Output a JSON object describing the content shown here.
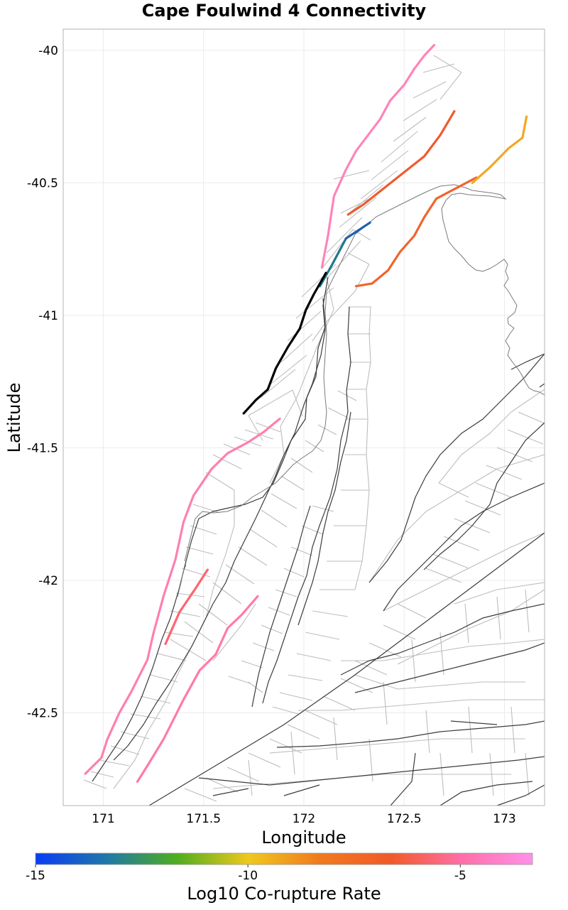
{
  "chart_data": {
    "type": "map",
    "title": "Cape Foulwind 4 Connectivity",
    "xlabel": "Longitude",
    "ylabel": "Latitude",
    "xlim": [
      170.8,
      173.2
    ],
    "ylim": [
      -42.85,
      -39.92
    ],
    "xticks": [
      171,
      171.5,
      172,
      172.5,
      173
    ],
    "xtick_labels": [
      "171",
      "171.5",
      "172",
      "172.5",
      "173"
    ],
    "yticks": [
      -40,
      -40.5,
      -41,
      -41.5,
      -42,
      -42.5
    ],
    "ytick_labels": [
      "-40",
      "-40.5",
      "-41",
      "-41.5",
      "-42",
      "-42.5"
    ],
    "colorbar": {
      "label": "Log10 Co-rupture Rate",
      "range": [
        -15,
        -3.3
      ],
      "ticks": [
        -15,
        -10,
        -5
      ],
      "tick_labels": [
        "-15",
        "-10",
        "-5"
      ],
      "colors": [
        "#0a3cf5",
        "#1f78a8",
        "#4fae1e",
        "#f0c81e",
        "#f07a1e",
        "#f05a28",
        "#ff6ea8",
        "#ff90e8"
      ]
    },
    "target_fault": {
      "name": "Cape Foulwind 4",
      "color": "#000000",
      "lonlat": [
        [
          171.7,
          -41.37
        ],
        [
          171.76,
          -41.32
        ],
        [
          171.82,
          -41.28
        ],
        [
          171.86,
          -41.2
        ],
        [
          171.92,
          -41.12
        ],
        [
          171.98,
          -41.05
        ],
        [
          172.01,
          -40.98
        ],
        [
          172.05,
          -40.92
        ],
        [
          172.11,
          -40.84
        ]
      ]
    },
    "connected_faults": [
      {
        "color": "#ff84b8",
        "log10_rate": -4.4,
        "lonlat": [
          [
            172.09,
            -40.82
          ],
          [
            172.12,
            -40.7
          ],
          [
            172.15,
            -40.55
          ],
          [
            172.21,
            -40.45
          ],
          [
            172.26,
            -40.38
          ],
          [
            172.32,
            -40.32
          ],
          [
            172.38,
            -40.26
          ],
          [
            172.43,
            -40.19
          ],
          [
            172.5,
            -40.13
          ],
          [
            172.55,
            -40.07
          ],
          [
            172.6,
            -40.02
          ],
          [
            172.65,
            -39.98
          ]
        ]
      },
      {
        "color": "#ff7fb0",
        "log10_rate": -4.6,
        "lonlat": [
          [
            171.88,
            -41.39
          ],
          [
            171.8,
            -41.44
          ],
          [
            171.72,
            -41.48
          ],
          [
            171.62,
            -41.52
          ],
          [
            171.54,
            -41.58
          ],
          [
            171.45,
            -41.68
          ],
          [
            171.4,
            -41.78
          ],
          [
            171.36,
            -41.92
          ],
          [
            171.3,
            -42.06
          ],
          [
            171.25,
            -42.2
          ],
          [
            171.22,
            -42.3
          ],
          [
            171.14,
            -42.42
          ],
          [
            171.08,
            -42.5
          ],
          [
            171.02,
            -42.6
          ],
          [
            170.99,
            -42.67
          ],
          [
            170.95,
            -42.7
          ],
          [
            170.91,
            -42.73
          ]
        ]
      },
      {
        "color": "#ff7aa8",
        "log10_rate": -4.8,
        "lonlat": [
          [
            171.77,
            -42.06
          ],
          [
            171.69,
            -42.13
          ],
          [
            171.62,
            -42.18
          ],
          [
            171.56,
            -42.28
          ],
          [
            171.48,
            -42.34
          ],
          [
            171.4,
            -42.45
          ],
          [
            171.3,
            -42.6
          ],
          [
            171.22,
            -42.7
          ],
          [
            171.17,
            -42.76
          ]
        ]
      },
      {
        "color": "#ff6470",
        "log10_rate": -5.3,
        "lonlat": [
          [
            171.31,
            -42.24
          ],
          [
            171.38,
            -42.12
          ],
          [
            171.46,
            -42.03
          ],
          [
            171.52,
            -41.96
          ]
        ]
      },
      {
        "color": "#f05a2d",
        "log10_rate": -5.9,
        "lonlat": [
          [
            172.22,
            -40.62
          ],
          [
            172.3,
            -40.58
          ],
          [
            172.4,
            -40.52
          ],
          [
            172.5,
            -40.46
          ],
          [
            172.6,
            -40.4
          ],
          [
            172.68,
            -40.32
          ],
          [
            172.75,
            -40.23
          ]
        ]
      },
      {
        "color": "#f0642d",
        "log10_rate": -5.9,
        "lonlat": [
          [
            172.26,
            -40.89
          ],
          [
            172.34,
            -40.88
          ],
          [
            172.42,
            -40.83
          ],
          [
            172.48,
            -40.76
          ],
          [
            172.55,
            -40.7
          ],
          [
            172.6,
            -40.63
          ],
          [
            172.66,
            -40.56
          ],
          [
            172.76,
            -40.52
          ],
          [
            172.86,
            -40.48
          ]
        ]
      },
      {
        "color": "#f5a623",
        "log10_rate": -7.8,
        "lonlat": [
          [
            172.84,
            -40.5
          ],
          [
            172.93,
            -40.44
          ],
          [
            173.02,
            -40.37
          ],
          [
            173.09,
            -40.33
          ],
          [
            173.11,
            -40.25
          ]
        ]
      },
      {
        "color": "#1e7a8c",
        "log10_rate": -13.2,
        "lonlat": [
          [
            172.08,
            -40.89
          ],
          [
            172.14,
            -40.81
          ],
          [
            172.21,
            -40.71
          ]
        ]
      },
      {
        "color": "#1f5fb5",
        "log10_rate": -14.0,
        "lonlat": [
          [
            172.21,
            -40.71
          ],
          [
            172.33,
            -40.65
          ]
        ]
      }
    ]
  }
}
